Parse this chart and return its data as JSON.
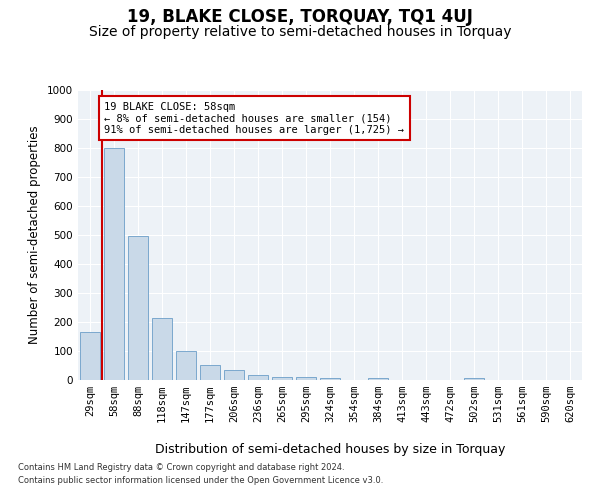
{
  "title": "19, BLAKE CLOSE, TORQUAY, TQ1 4UJ",
  "subtitle": "Size of property relative to semi-detached houses in Torquay",
  "xlabel": "Distribution of semi-detached houses by size in Torquay",
  "ylabel": "Number of semi-detached properties",
  "categories": [
    "29sqm",
    "58sqm",
    "88sqm",
    "118sqm",
    "147sqm",
    "177sqm",
    "206sqm",
    "236sqm",
    "265sqm",
    "295sqm",
    "324sqm",
    "354sqm",
    "384sqm",
    "413sqm",
    "443sqm",
    "472sqm",
    "502sqm",
    "531sqm",
    "561sqm",
    "590sqm",
    "620sqm"
  ],
  "values": [
    165,
    800,
    495,
    213,
    100,
    52,
    35,
    18,
    12,
    10,
    8,
    0,
    8,
    0,
    0,
    0,
    8,
    0,
    0,
    0,
    0
  ],
  "bar_color": "#c9d9e8",
  "bar_edge_color": "#6b9ec8",
  "highlight_bar_index": 1,
  "highlight_color": "#cc0000",
  "annotation_text": "19 BLAKE CLOSE: 58sqm\n← 8% of semi-detached houses are smaller (154)\n91% of semi-detached houses are larger (1,725) →",
  "annotation_box_color": "#ffffff",
  "annotation_box_edge_color": "#cc0000",
  "ylim": [
    0,
    1000
  ],
  "yticks": [
    0,
    100,
    200,
    300,
    400,
    500,
    600,
    700,
    800,
    900,
    1000
  ],
  "footer_line1": "Contains HM Land Registry data © Crown copyright and database right 2024.",
  "footer_line2": "Contains public sector information licensed under the Open Government Licence v3.0.",
  "plot_bg_color": "#edf2f7",
  "title_fontsize": 12,
  "subtitle_fontsize": 10,
  "tick_fontsize": 7.5,
  "ylabel_fontsize": 8.5,
  "xlabel_fontsize": 9,
  "footer_fontsize": 6,
  "annotation_fontsize": 7.5
}
